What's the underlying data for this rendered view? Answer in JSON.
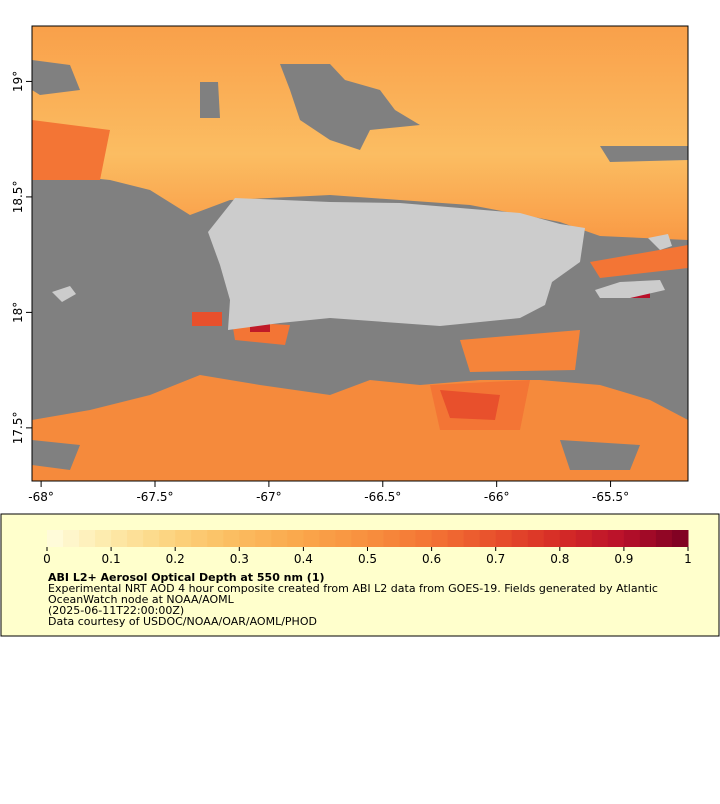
{
  "map": {
    "xlim": [
      -68.04,
      -65.16
    ],
    "ylim": [
      17.27,
      19.24
    ],
    "xticks": [
      {
        "value": -68,
        "label": "-68°"
      },
      {
        "value": -67.5,
        "label": "-67.5°"
      },
      {
        "value": -67,
        "label": "-67°"
      },
      {
        "value": -66.5,
        "label": "-66.5°"
      },
      {
        "value": -66,
        "label": "-66°"
      },
      {
        "value": -65.5,
        "label": "-65.5°"
      }
    ],
    "yticks": [
      {
        "value": 17.5,
        "label": "17.5°"
      },
      {
        "value": 18,
        "label": "18°"
      },
      {
        "value": 18.5,
        "label": "18.5°"
      },
      {
        "value": 19,
        "label": "19°"
      }
    ]
  },
  "colorbar": {
    "range": [
      0,
      1
    ],
    "ticks": [
      0,
      0.1,
      0.2,
      0.3,
      0.4,
      0.5,
      0.6,
      0.7,
      0.8,
      0.9,
      1
    ],
    "colors": [
      "#fffde0",
      "#fde9a8",
      "#fcd27c",
      "#fbbb5e",
      "#faa64b",
      "#f88f3e",
      "#f37334",
      "#e8502c",
      "#d62b26",
      "#b8102a",
      "#7a0022"
    ]
  },
  "legend": {
    "title": "ABI L2+ Aerosol Optical Depth at 550 nm (1)",
    "lines": [
      "Experimental NRT AOD 4 hour composite created from ABI L2 data from GOES-19. Fields generated by Atlantic",
      "OceanWatch node at NOAA/AOML",
      "(2025-06-11T22:00:00Z)",
      "Data courtesy of USDOC/NOAA/OAR/AOML/PHOD"
    ]
  }
}
